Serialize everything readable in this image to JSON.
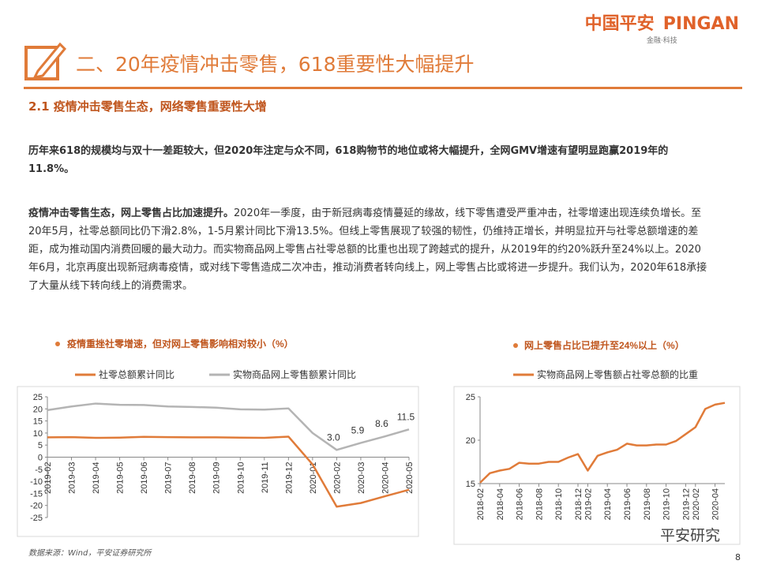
{
  "header": {
    "brand_cn": "中国平安",
    "brand_en": "PINGAN",
    "tagline": "金融·科技"
  },
  "section_title": "二、20年疫情冲击零售，618重要性大幅提升",
  "subsection_title": "2.1 疫情冲击零售生态，网络零售重要性大增",
  "paragraphs": [
    {
      "bold": "历年来618的规模均与双十一差距较大，但2020年注定与众不同，618购物节的地位或将大幅提升，全网GMV增速有望明显跑赢2019年的11.8%。"
    },
    {
      "bold": "疫情冲击零售生态，网上零售占比加速提升。",
      "text": "2020年一季度，由于新冠病毒疫情蔓延的缘故，线下零售遭受严重冲击，社零增速出现连续负增长。至20年5月，社零总额同比仍下滑2.8%，1-5月累计同比下滑13.5%。但线上零售展现了较强的韧性，仍维持正增长，并明显拉开与社零总额增速的差距，成为推动国内消费回暖的最大动力。而实物商品网上零售占社零总额的比重也出现了跨越式的提升，从2019年的约20%跃升至24%以上。2020年6月，北京再度出现新冠病毒疫情，或对线下零售造成二次冲击，推动消费者转向线上，网上零售占比或将进一步提升。我们认为，2020年618承接了大量从线下转向线上的消费需求。"
    }
  ],
  "chart_data": [
    {
      "type": "line",
      "title": "疫情重挫社零增速，但对网上零售影响相对较小（%）",
      "categories": [
        "2019-02",
        "2019-03",
        "2019-04",
        "2019-05",
        "2019-06",
        "2019-07",
        "2019-08",
        "2019-09",
        "2019-10",
        "2019-11",
        "2019-12",
        "2020-01",
        "2020-02",
        "2020-03",
        "2020-04",
        "2020-05"
      ],
      "series": [
        {
          "name": "社零总额累计同比",
          "color": "#e07b39",
          "values": [
            8.2,
            8.3,
            8.0,
            8.1,
            8.4,
            8.3,
            8.2,
            8.2,
            8.1,
            8.0,
            8.5,
            -3,
            -20.5,
            -19.0,
            -16.2,
            -13.5
          ]
        },
        {
          "name": "实物商品网上零售额累计同比",
          "color": "#b4b4b4",
          "values": [
            19.5,
            21.0,
            22.2,
            21.7,
            21.6,
            21.0,
            20.8,
            20.5,
            19.8,
            19.7,
            20.2,
            10,
            3.0,
            5.9,
            8.6,
            11.5
          ],
          "value_labels": [
            null,
            null,
            null,
            null,
            null,
            null,
            null,
            null,
            null,
            null,
            null,
            null,
            "3.0",
            "5.9",
            "8.6",
            "11.5"
          ]
        }
      ],
      "ylim": [
        -25,
        25
      ],
      "yticks": [
        -25,
        -20,
        -15,
        -10,
        -5,
        0,
        5,
        10,
        15,
        20,
        25
      ],
      "legend": "top"
    },
    {
      "type": "line",
      "title": "网上零售占比已提升至24%以上（%）",
      "categories": [
        "2018-02",
        null,
        "2018-04",
        null,
        "2018-06",
        null,
        "2018-08",
        null,
        "2018-10",
        null,
        "2018-12",
        "2019-02",
        null,
        "2019-04",
        null,
        "2019-06",
        null,
        "2019-08",
        null,
        "2019-10",
        null,
        "2019-12",
        "2020-02",
        null,
        "2020-04",
        null
      ],
      "series": [
        {
          "name": "实物商品网上零售额占社零总额的比重",
          "color": "#e07b39",
          "values": [
            15.1,
            16.2,
            16.5,
            16.7,
            17.4,
            17.3,
            17.3,
            17.5,
            17.5,
            18.0,
            18.4,
            16.5,
            18.2,
            18.6,
            18.9,
            19.6,
            19.4,
            19.4,
            19.5,
            19.5,
            19.9,
            20.7,
            21.5,
            23.6,
            24.1,
            24.3
          ]
        }
      ],
      "ylim": [
        15,
        25
      ],
      "yticks": [
        15,
        20,
        25
      ],
      "legend": "top"
    }
  ],
  "source": "数据来源：Wind，平安证券研究所",
  "page_number": "8",
  "watermark": "平安研究"
}
